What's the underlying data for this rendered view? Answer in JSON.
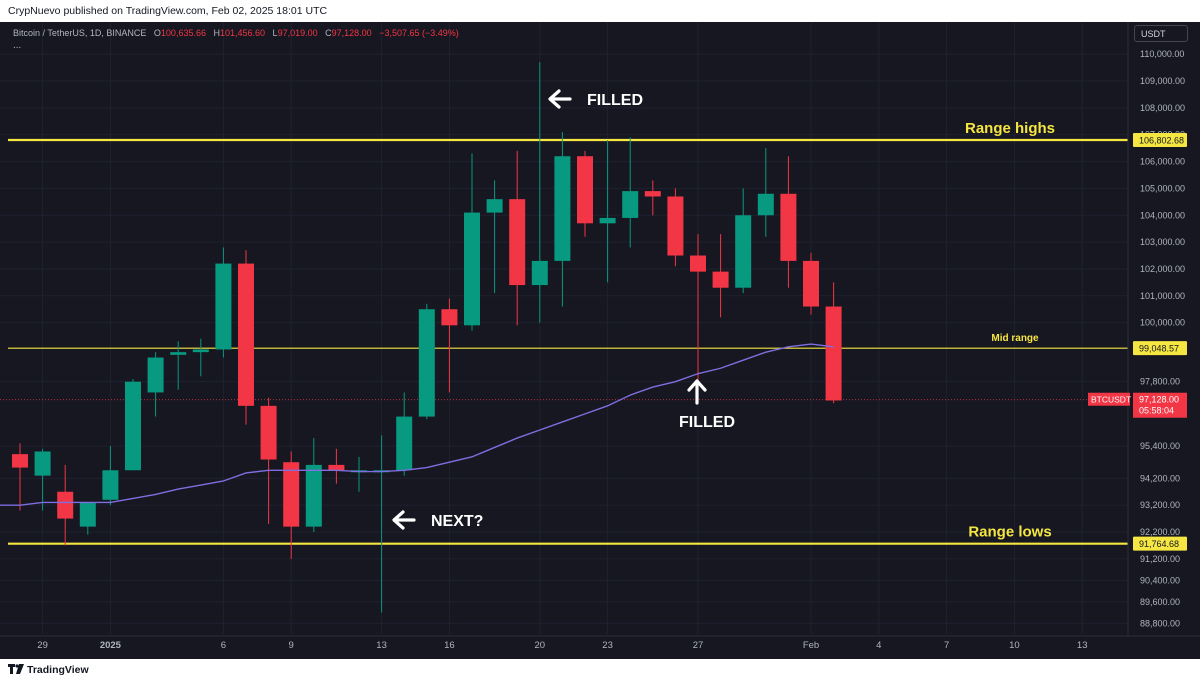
{
  "header": {
    "published": "CrypNuevo published on TradingView.com, Feb 02, 2025 18:01 UTC"
  },
  "legend": {
    "symbol": "Bitcoin / TetherUS, 1D, BINANCE",
    "o_label": "O",
    "o": "100,635.66",
    "h_label": "H",
    "h": "101,456.60",
    "l_label": "L",
    "l": "97,019.00",
    "c_label": "C",
    "c": "97,128.00",
    "change": "−3,507.65 (−3.49%)",
    "more": "..."
  },
  "currency_button": "USDT",
  "footer": {
    "brand": "TradingView"
  },
  "colors": {
    "up": "#089981",
    "down": "#f23645",
    "level": "#f5e642",
    "ma": "#7e6ee0",
    "background": "#161720",
    "axis_text": "#b2b5be"
  },
  "chart_data": {
    "type": "candlestick",
    "symbol": "BTCUSDT",
    "timeframe": "1D",
    "ylim": [
      88400,
      111200
    ],
    "y_ticks": [
      {
        "label": "110,000.00",
        "value": 110000
      },
      {
        "label": "109,000.00",
        "value": 109000
      },
      {
        "label": "108,000.00",
        "value": 108000
      },
      {
        "label": "107,000.00",
        "value": 107000
      },
      {
        "label": "106,000.00",
        "value": 106000
      },
      {
        "label": "105,000.00",
        "value": 105000
      },
      {
        "label": "104,000.00",
        "value": 104000
      },
      {
        "label": "103,000.00",
        "value": 103000
      },
      {
        "label": "102,000.00",
        "value": 102000
      },
      {
        "label": "101,000.00",
        "value": 101000
      },
      {
        "label": "100,000.00",
        "value": 100000
      },
      {
        "label": "97,800.00",
        "value": 97800
      },
      {
        "label": "95,400.00",
        "value": 95400
      },
      {
        "label": "94,200.00",
        "value": 94200
      },
      {
        "label": "93,200.00",
        "value": 93200
      },
      {
        "label": "92,200.00",
        "value": 92200
      },
      {
        "label": "91,200.00",
        "value": 91200
      },
      {
        "label": "90,400.00",
        "value": 90400
      },
      {
        "label": "89,600.00",
        "value": 89600
      },
      {
        "label": "88,800.00",
        "value": 88800
      }
    ],
    "x_ticks": [
      {
        "label": "29",
        "index": 1
      },
      {
        "label": "2025",
        "index": 4
      },
      {
        "label": "6",
        "index": 9
      },
      {
        "label": "9",
        "index": 12
      },
      {
        "label": "13",
        "index": 16
      },
      {
        "label": "16",
        "index": 19
      },
      {
        "label": "20",
        "index": 23
      },
      {
        "label": "23",
        "index": 26
      },
      {
        "label": "27",
        "index": 30
      },
      {
        "label": "Feb",
        "index": 35
      },
      {
        "label": "4",
        "index": 38
      },
      {
        "label": "7",
        "index": 41
      },
      {
        "label": "10",
        "index": 44
      },
      {
        "label": "13",
        "index": 47
      }
    ],
    "candles": [
      {
        "o": 95100,
        "h": 95500,
        "l": 93000,
        "c": 94600
      },
      {
        "o": 94300,
        "h": 95300,
        "l": 93000,
        "c": 95200
      },
      {
        "o": 93700,
        "h": 94700,
        "l": 91700,
        "c": 92700
      },
      {
        "o": 92400,
        "h": 93300,
        "l": 92100,
        "c": 93300
      },
      {
        "o": 93400,
        "h": 95400,
        "l": 93200,
        "c": 94500
      },
      {
        "o": 94500,
        "h": 97900,
        "l": 94500,
        "c": 97800
      },
      {
        "o": 97400,
        "h": 98900,
        "l": 96500,
        "c": 98700
      },
      {
        "o": 98800,
        "h": 99300,
        "l": 97500,
        "c": 98900
      },
      {
        "o": 98900,
        "h": 99400,
        "l": 98000,
        "c": 99000
      },
      {
        "o": 99000,
        "h": 102800,
        "l": 98700,
        "c": 102200
      },
      {
        "o": 102200,
        "h": 102700,
        "l": 96200,
        "c": 96900
      },
      {
        "o": 96900,
        "h": 97200,
        "l": 92500,
        "c": 94900
      },
      {
        "o": 94800,
        "h": 95200,
        "l": 91200,
        "c": 92400
      },
      {
        "o": 92400,
        "h": 95700,
        "l": 92200,
        "c": 94700
      },
      {
        "o": 94700,
        "h": 95300,
        "l": 94000,
        "c": 94500
      },
      {
        "o": 94500,
        "h": 95000,
        "l": 93700,
        "c": 94500
      },
      {
        "o": 94500,
        "h": 95800,
        "l": 89200,
        "c": 94500
      },
      {
        "o": 94500,
        "h": 97400,
        "l": 94300,
        "c": 96500
      },
      {
        "o": 96500,
        "h": 100700,
        "l": 96400,
        "c": 100500
      },
      {
        "o": 100500,
        "h": 100900,
        "l": 97400,
        "c": 99900
      },
      {
        "o": 99900,
        "h": 106300,
        "l": 99700,
        "c": 104100
      },
      {
        "o": 104100,
        "h": 105300,
        "l": 101100,
        "c": 104600
      },
      {
        "o": 104600,
        "h": 106400,
        "l": 99900,
        "c": 101400
      },
      {
        "o": 101400,
        "h": 109700,
        "l": 100000,
        "c": 102300
      },
      {
        "o": 102300,
        "h": 107100,
        "l": 100600,
        "c": 106200
      },
      {
        "o": 106200,
        "h": 106400,
        "l": 103200,
        "c": 103700
      },
      {
        "o": 103700,
        "h": 106800,
        "l": 101500,
        "c": 103900
      },
      {
        "o": 103900,
        "h": 106900,
        "l": 102800,
        "c": 104900
      },
      {
        "o": 104900,
        "h": 105300,
        "l": 104000,
        "c": 104700
      },
      {
        "o": 104700,
        "h": 105000,
        "l": 102100,
        "c": 102500
      },
      {
        "o": 102500,
        "h": 103300,
        "l": 97700,
        "c": 101900
      },
      {
        "o": 101900,
        "h": 103300,
        "l": 100200,
        "c": 101300
      },
      {
        "o": 101300,
        "h": 105000,
        "l": 101100,
        "c": 104000
      },
      {
        "o": 104000,
        "h": 106500,
        "l": 103200,
        "c": 104800
      },
      {
        "o": 104800,
        "h": 106200,
        "l": 101300,
        "c": 102300
      },
      {
        "o": 102300,
        "h": 102600,
        "l": 100300,
        "c": 100600
      },
      {
        "o": 100600,
        "h": 101500,
        "l": 97000,
        "c": 97100
      }
    ],
    "moving_average": [
      93200,
      93300,
      93300,
      93300,
      93300,
      93450,
      93600,
      93800,
      93950,
      94100,
      94400,
      94500,
      94500,
      94500,
      94500,
      94450,
      94450,
      94500,
      94600,
      94800,
      95000,
      95350,
      95700,
      96000,
      96300,
      96600,
      96900,
      97300,
      97600,
      97800,
      98100,
      98300,
      98600,
      98900,
      99100,
      99200,
      99100
    ],
    "horizontal_levels": [
      {
        "label": "Range highs",
        "value": 106802.68,
        "price_label": "106,802.68"
      },
      {
        "label": "Mid range",
        "value": 99048.57,
        "price_label": "99,048.57"
      },
      {
        "label": "Range lows",
        "value": 91764.68,
        "price_label": "91,764.68"
      }
    ],
    "last_price": {
      "symbol": "BTCUSDT",
      "value": 97128.0,
      "price_label": "97,128.00",
      "countdown": "05:58:04"
    },
    "annotations": [
      {
        "text": "FILLED",
        "arrow": "left",
        "anchor_index": 23,
        "value": 109500
      },
      {
        "text": "FILLED",
        "arrow": "up",
        "anchor_index": 30,
        "value": 97500
      },
      {
        "text": "NEXT?",
        "arrow": "left",
        "anchor_index": 17,
        "value": 92000
      }
    ]
  }
}
